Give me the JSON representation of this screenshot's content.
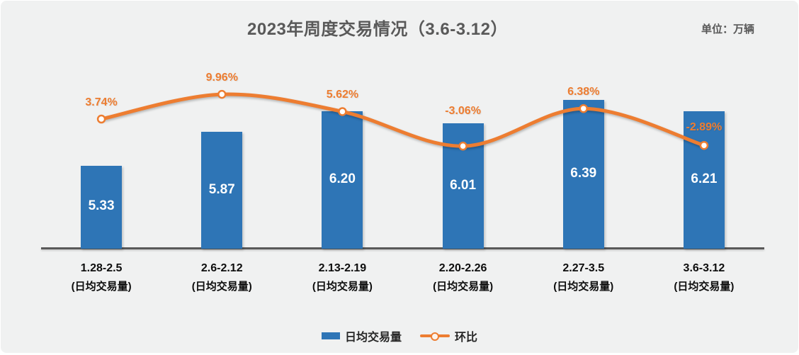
{
  "header": {
    "title": "2023年周度交易情况（3.6-3.12）",
    "unit_label": "单位：万辆"
  },
  "legend": [
    {
      "label": "日均交易量",
      "swatch": "blue-bar-swatch"
    },
    {
      "label": "环比",
      "swatch": "orange-line-swatch"
    }
  ],
  "colors": {
    "bar": "#2e75b6",
    "line": "#ed7d31",
    "marker_fill": "#ffffff",
    "axis": "#595959",
    "title_text": "#595959",
    "background": "#f0f1f1",
    "bar_value_text": "#ffffff",
    "category_text": "#0d0d0d"
  },
  "chart_data": {
    "type": "bar",
    "title": "2023年周度交易情况（3.6-3.12）",
    "unit": "万辆",
    "categories": [
      "1.28-2.5",
      "2.6-2.12",
      "2.13-2.19",
      "2.20-2.26",
      "2.27-3.5",
      "3.6-3.12"
    ],
    "category_sublabel": "(日均交易量)",
    "series": [
      {
        "name": "日均交易量",
        "type": "bar",
        "values": [
          5.33,
          5.87,
          6.2,
          6.01,
          6.39,
          6.21
        ],
        "value_labels": [
          "5.33",
          "5.87",
          "6.20",
          "6.01",
          "6.39",
          "6.21"
        ]
      },
      {
        "name": "环比",
        "type": "line",
        "values": [
          3.74,
          9.96,
          5.62,
          -3.06,
          6.38,
          -2.89
        ],
        "value_labels": [
          "3.74%",
          "9.96%",
          "5.62%",
          "-3.06%",
          "6.38%",
          "-2.89%"
        ]
      }
    ],
    "legend_position": "bottom",
    "grid": false,
    "xlabel": "",
    "ylabel": ""
  }
}
